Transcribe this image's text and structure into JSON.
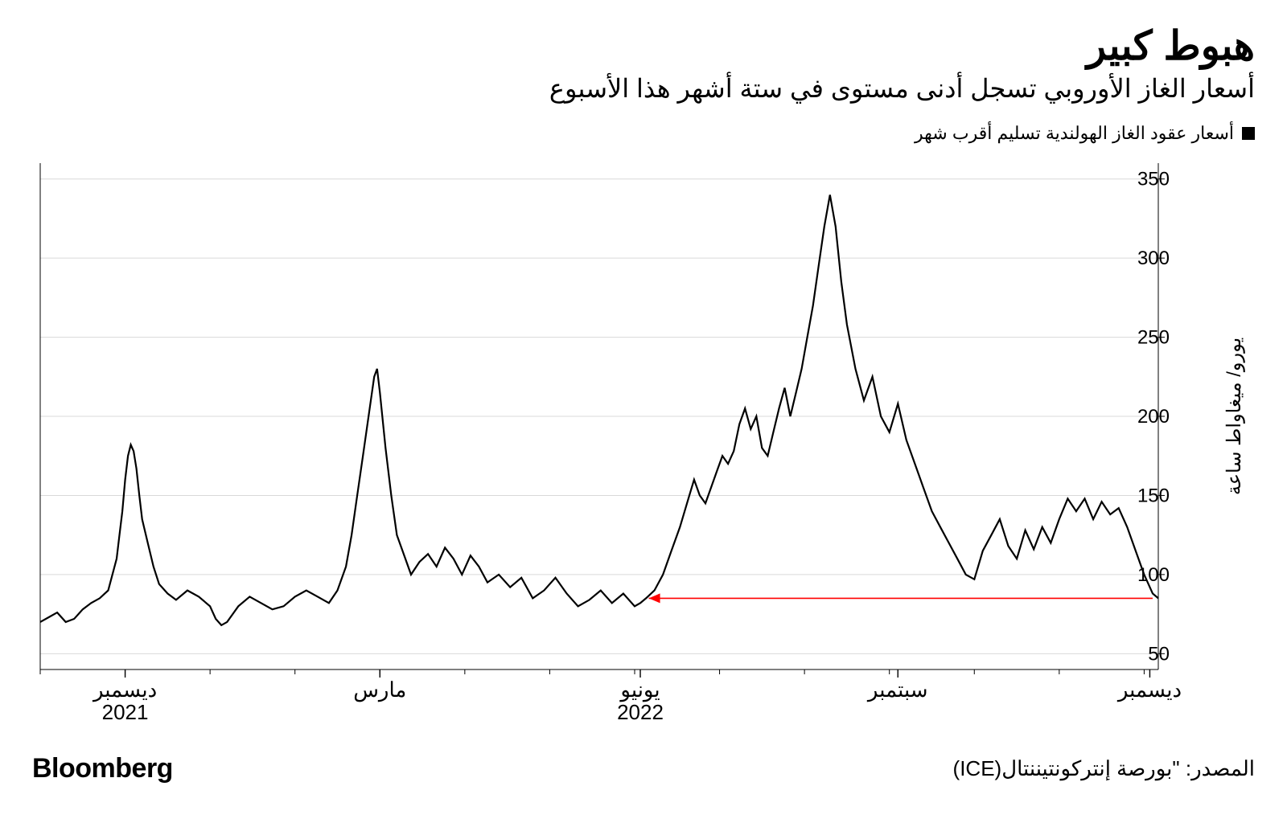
{
  "title": "هبوط كبير",
  "subtitle": "أسعار الغاز الأوروبي تسجل أدنى مستوى في ستة أشهر هذا الأسبوع",
  "legend": {
    "swatch_color": "#000000",
    "label": "أسعار عقود الغاز الهولندية تسليم أقرب شهر"
  },
  "brand": "Bloomberg",
  "source": "المصدر: \"بورصة إنتركونتيننتال(ICE)",
  "fonts": {
    "title_size": 50,
    "subtitle_size": 32,
    "legend_size": 22,
    "brand_size": 34,
    "source_size": 26,
    "ytick_size": 24,
    "xtick_size": 26,
    "yaxis_title_size": 24
  },
  "chart": {
    "type": "line",
    "background_color": "#ffffff",
    "grid_color": "#d9d9d9",
    "axis_color": "#000000",
    "line_color": "#000000",
    "line_width": 2.2,
    "annotation_color": "#ff0000",
    "y_axis_title": "يورو/ ميغاواط ساعة",
    "ylim": [
      40,
      360
    ],
    "yticks": [
      50,
      100,
      150,
      200,
      250,
      300,
      350
    ],
    "x_range_days": 395,
    "x_major_ticks": [
      {
        "day": 30,
        "top": "ديسمبر",
        "bottom": "2021"
      },
      {
        "day": 120,
        "top": "مارس",
        "bottom": ""
      },
      {
        "day": 212,
        "top": "يونيو",
        "bottom": "2022"
      },
      {
        "day": 303,
        "top": "سبتمبر",
        "bottom": ""
      },
      {
        "day": 392,
        "top": "ديسمبر",
        "bottom": ""
      }
    ],
    "x_minor_ticks_every": 30,
    "series": [
      [
        0,
        70
      ],
      [
        3,
        73
      ],
      [
        6,
        76
      ],
      [
        9,
        70
      ],
      [
        12,
        72
      ],
      [
        15,
        78
      ],
      [
        18,
        82
      ],
      [
        21,
        85
      ],
      [
        24,
        90
      ],
      [
        27,
        110
      ],
      [
        28,
        125
      ],
      [
        29,
        140
      ],
      [
        30,
        160
      ],
      [
        31,
        175
      ],
      [
        32,
        182
      ],
      [
        33,
        178
      ],
      [
        34,
        167
      ],
      [
        35,
        150
      ],
      [
        36,
        135
      ],
      [
        38,
        120
      ],
      [
        40,
        105
      ],
      [
        42,
        94
      ],
      [
        45,
        88
      ],
      [
        48,
        84
      ],
      [
        52,
        90
      ],
      [
        56,
        86
      ],
      [
        60,
        80
      ],
      [
        62,
        72
      ],
      [
        64,
        68
      ],
      [
        66,
        70
      ],
      [
        70,
        80
      ],
      [
        74,
        86
      ],
      [
        78,
        82
      ],
      [
        82,
        78
      ],
      [
        86,
        80
      ],
      [
        90,
        86
      ],
      [
        94,
        90
      ],
      [
        98,
        86
      ],
      [
        102,
        82
      ],
      [
        105,
        90
      ],
      [
        108,
        105
      ],
      [
        110,
        125
      ],
      [
        112,
        150
      ],
      [
        114,
        175
      ],
      [
        116,
        200
      ],
      [
        118,
        225
      ],
      [
        119,
        230
      ],
      [
        120,
        215
      ],
      [
        122,
        180
      ],
      [
        124,
        150
      ],
      [
        126,
        125
      ],
      [
        128,
        115
      ],
      [
        131,
        100
      ],
      [
        134,
        108
      ],
      [
        137,
        113
      ],
      [
        140,
        105
      ],
      [
        143,
        117
      ],
      [
        146,
        110
      ],
      [
        149,
        100
      ],
      [
        152,
        112
      ],
      [
        155,
        105
      ],
      [
        158,
        95
      ],
      [
        162,
        100
      ],
      [
        166,
        92
      ],
      [
        170,
        98
      ],
      [
        174,
        85
      ],
      [
        178,
        90
      ],
      [
        182,
        98
      ],
      [
        186,
        88
      ],
      [
        190,
        80
      ],
      [
        194,
        84
      ],
      [
        198,
        90
      ],
      [
        202,
        82
      ],
      [
        206,
        88
      ],
      [
        210,
        80
      ],
      [
        212,
        82
      ],
      [
        214,
        85
      ],
      [
        217,
        90
      ],
      [
        220,
        100
      ],
      [
        223,
        115
      ],
      [
        226,
        130
      ],
      [
        229,
        148
      ],
      [
        231,
        160
      ],
      [
        233,
        150
      ],
      [
        235,
        145
      ],
      [
        237,
        155
      ],
      [
        239,
        165
      ],
      [
        241,
        175
      ],
      [
        243,
        170
      ],
      [
        245,
        178
      ],
      [
        247,
        195
      ],
      [
        249,
        205
      ],
      [
        251,
        192
      ],
      [
        253,
        200
      ],
      [
        255,
        180
      ],
      [
        257,
        175
      ],
      [
        259,
        190
      ],
      [
        261,
        205
      ],
      [
        263,
        218
      ],
      [
        265,
        200
      ],
      [
        267,
        215
      ],
      [
        269,
        230
      ],
      [
        271,
        250
      ],
      [
        273,
        270
      ],
      [
        275,
        295
      ],
      [
        277,
        320
      ],
      [
        279,
        340
      ],
      [
        281,
        320
      ],
      [
        283,
        285
      ],
      [
        285,
        258
      ],
      [
        288,
        230
      ],
      [
        291,
        210
      ],
      [
        294,
        225
      ],
      [
        297,
        200
      ],
      [
        300,
        190
      ],
      [
        303,
        208
      ],
      [
        306,
        185
      ],
      [
        309,
        170
      ],
      [
        312,
        155
      ],
      [
        315,
        140
      ],
      [
        318,
        130
      ],
      [
        321,
        120
      ],
      [
        324,
        110
      ],
      [
        327,
        100
      ],
      [
        330,
        97
      ],
      [
        333,
        115
      ],
      [
        336,
        125
      ],
      [
        339,
        135
      ],
      [
        342,
        118
      ],
      [
        345,
        110
      ],
      [
        348,
        128
      ],
      [
        351,
        116
      ],
      [
        354,
        130
      ],
      [
        357,
        120
      ],
      [
        360,
        135
      ],
      [
        363,
        148
      ],
      [
        366,
        140
      ],
      [
        369,
        148
      ],
      [
        372,
        135
      ],
      [
        375,
        146
      ],
      [
        378,
        138
      ],
      [
        381,
        142
      ],
      [
        384,
        130
      ],
      [
        387,
        115
      ],
      [
        390,
        100
      ],
      [
        393,
        88
      ],
      [
        395,
        85
      ]
    ],
    "annotation_arrow": {
      "x_start": 393,
      "x_end": 215,
      "y": 85
    }
  }
}
